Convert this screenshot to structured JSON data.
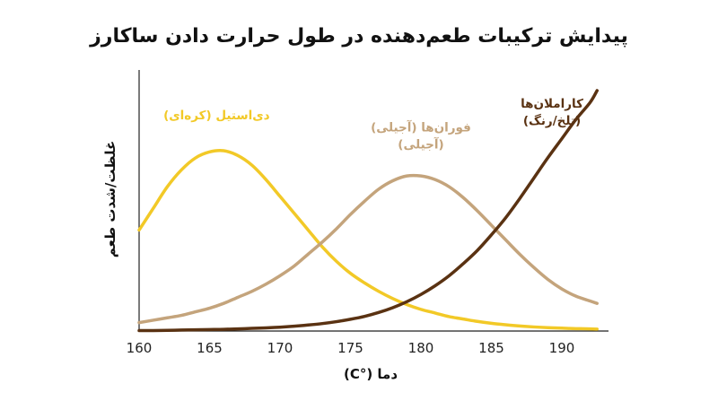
{
  "chart_data": {
    "type": "line",
    "title": "پیدایش ترکیبات طعم‌دهنده در طول حرارت دادن ساکارز",
    "xlabel": "دما (°C)",
    "ylabel": "غلظت/شدت طعم",
    "xlim": [
      160,
      193
    ],
    "ylim": [
      0,
      1
    ],
    "x_ticks": [
      "160",
      "165",
      "170",
      "175",
      "180",
      "185",
      "190"
    ],
    "grid": false,
    "legend": "none",
    "x": [
      160,
      161,
      162,
      163,
      164,
      165,
      166,
      167,
      168,
      169,
      170,
      171,
      172,
      173,
      174,
      175,
      176,
      177,
      178,
      179,
      180,
      181,
      182,
      183,
      184,
      185,
      186,
      187,
      188,
      189,
      190,
      191,
      192,
      192.5
    ],
    "series": [
      {
        "name": "دی‌استیل (کره‌ای)",
        "color": "#f2c927",
        "values": [
          0.42,
          0.51,
          0.6,
          0.67,
          0.72,
          0.745,
          0.75,
          0.73,
          0.69,
          0.63,
          0.56,
          0.49,
          0.42,
          0.35,
          0.29,
          0.24,
          0.2,
          0.165,
          0.135,
          0.11,
          0.09,
          0.075,
          0.06,
          0.05,
          0.04,
          0.032,
          0.026,
          0.021,
          0.017,
          0.014,
          0.012,
          0.01,
          0.009,
          0.008
        ]
      },
      {
        "name": "فوران‌ها (آجیلی)",
        "color": "#c4a47c",
        "values": [
          0.035,
          0.045,
          0.055,
          0.065,
          0.08,
          0.095,
          0.115,
          0.14,
          0.165,
          0.195,
          0.23,
          0.27,
          0.32,
          0.37,
          0.425,
          0.485,
          0.54,
          0.59,
          0.625,
          0.645,
          0.645,
          0.63,
          0.6,
          0.555,
          0.5,
          0.44,
          0.38,
          0.32,
          0.265,
          0.215,
          0.175,
          0.145,
          0.125,
          0.115
        ]
      },
      {
        "name": "کاراملان‌ها (تلخ/رنگ)",
        "color": "#5a3212",
        "values": [
          0.002,
          0.002,
          0.003,
          0.004,
          0.005,
          0.006,
          0.007,
          0.009,
          0.011,
          0.013,
          0.016,
          0.02,
          0.025,
          0.031,
          0.039,
          0.049,
          0.061,
          0.077,
          0.097,
          0.122,
          0.152,
          0.188,
          0.23,
          0.28,
          0.335,
          0.4,
          0.47,
          0.55,
          0.635,
          0.72,
          0.8,
          0.88,
          0.95,
          1.0
        ]
      }
    ],
    "annotations": [
      {
        "lines": [
          "دی‌استیل (کره‌ای)"
        ],
        "series": 0,
        "x": 165.5,
        "y": 0.88
      },
      {
        "lines": [
          "فوران‌ها (آجیلی)",
          "(آجیلی)"
        ],
        "series": 1,
        "x": 180,
        "y": 0.83
      },
      {
        "lines": [
          "کاراملان‌ها",
          "(تلخ/رنگ)"
        ],
        "series": 2,
        "x": 189.3,
        "y": 0.93
      }
    ]
  }
}
